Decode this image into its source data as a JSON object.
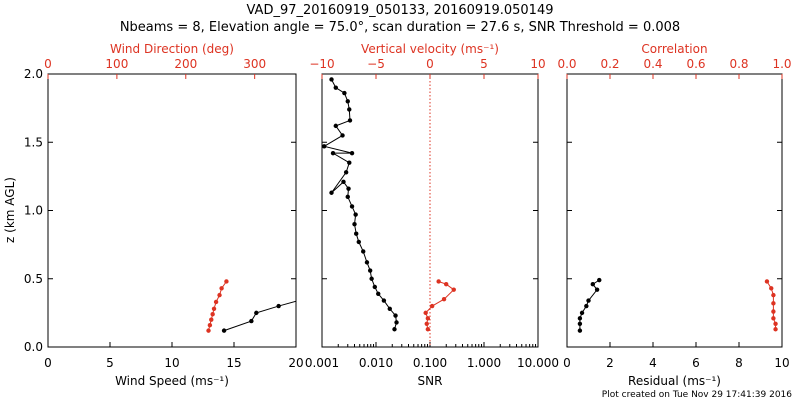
{
  "figure": {
    "title_line1": "VAD_97_20160919_050133, 20160919.050149",
    "title_line2": "Nbeams = 8, Elevation angle = 75.0°, scan duration = 27.6 s, SNR Threshold = 0.008",
    "footer": "Plot created on Tue Nov 29 17:41:39 2016",
    "y_axis_label": "z (km AGL)",
    "y_ticks": [
      "0.0",
      "0.5",
      "1.0",
      "1.5",
      "2.0"
    ],
    "colors": {
      "axis": "#000000",
      "secondary": "#dd3322"
    }
  },
  "chart_data": [
    {
      "type": "line",
      "title": "",
      "xlabel": "Wind Speed (ms⁻¹)",
      "xlim": [
        0,
        20
      ],
      "x_ticks": [
        "0",
        "5",
        "10",
        "15",
        "20"
      ],
      "top_xlabel": "Wind Direction (deg)",
      "top_xlim": [
        0,
        360
      ],
      "top_x_ticks": [
        "0",
        "100",
        "200",
        "300"
      ],
      "ylabel": "z (km AGL)",
      "ylim": [
        0,
        2
      ],
      "grid": false,
      "series": [
        {
          "axis": "bottom",
          "points": [
            [
              14.2,
              0.12
            ],
            [
              16.4,
              0.19
            ],
            [
              16.8,
              0.25
            ],
            [
              18.6,
              0.3
            ],
            [
              20.2,
              0.34
            ]
          ]
        },
        {
          "axis": "top",
          "points": [
            [
              233,
              0.12
            ],
            [
              235,
              0.16
            ],
            [
              237,
              0.2
            ],
            [
              239,
              0.24
            ],
            [
              241,
              0.28
            ],
            [
              244,
              0.33
            ],
            [
              249,
              0.38
            ],
            [
              252,
              0.43
            ],
            [
              259,
              0.48
            ]
          ]
        }
      ]
    },
    {
      "type": "line",
      "title": "",
      "xlabel": "SNR",
      "xscale": "log",
      "xlim": [
        0.001,
        10
      ],
      "x_ticks": [
        "0.001",
        "0.010",
        "0.100",
        "1.000",
        "10.000"
      ],
      "top_xlabel": "Vertical velocity (ms⁻¹)",
      "top_xlim": [
        -10,
        10
      ],
      "top_x_ticks": [
        "−10",
        "−5",
        "0",
        "5",
        "10"
      ],
      "ylim": [
        0,
        2
      ],
      "reference_line": {
        "axis": "top",
        "x": 0
      },
      "series": [
        {
          "axis": "bottom",
          "points": [
            [
              0.022,
              0.13
            ],
            [
              0.024,
              0.18
            ],
            [
              0.023,
              0.23
            ],
            [
              0.018,
              0.28
            ],
            [
              0.014,
              0.34
            ],
            [
              0.011,
              0.39
            ],
            [
              0.0095,
              0.44
            ],
            [
              0.0083,
              0.5
            ],
            [
              0.0078,
              0.56
            ],
            [
              0.0068,
              0.62
            ],
            [
              0.0058,
              0.7
            ],
            [
              0.0048,
              0.77
            ],
            [
              0.0043,
              0.83
            ],
            [
              0.004,
              0.9
            ],
            [
              0.0042,
              0.97
            ],
            [
              0.0036,
              1.03
            ],
            [
              0.003,
              1.1
            ],
            [
              0.0031,
              1.16
            ],
            [
              0.0025,
              1.21
            ],
            [
              0.0015,
              1.13
            ],
            [
              0.0028,
              1.28
            ],
            [
              0.0032,
              1.35
            ],
            [
              0.0016,
              1.42
            ],
            [
              0.0036,
              1.42
            ],
            [
              0.0011,
              1.47
            ],
            [
              0.0024,
              1.55
            ],
            [
              0.0018,
              1.62
            ],
            [
              0.0033,
              1.66
            ],
            [
              0.0032,
              1.74
            ],
            [
              0.003,
              1.8
            ],
            [
              0.0026,
              1.86
            ],
            [
              0.0018,
              1.9
            ],
            [
              0.0015,
              1.96
            ]
          ]
        },
        {
          "axis": "top",
          "points": [
            [
              -0.2,
              0.13
            ],
            [
              -0.3,
              0.17
            ],
            [
              -0.2,
              0.21
            ],
            [
              -0.4,
              0.25
            ],
            [
              0.2,
              0.3
            ],
            [
              1.3,
              0.35
            ],
            [
              2.2,
              0.42
            ],
            [
              1.5,
              0.46
            ],
            [
              0.8,
              0.48
            ]
          ]
        }
      ]
    },
    {
      "type": "line",
      "title": "",
      "xlabel": "Residual (ms⁻¹)",
      "xlim": [
        0,
        10
      ],
      "x_ticks": [
        "0",
        "2",
        "4",
        "6",
        "8",
        "10"
      ],
      "top_xlabel": "Correlation",
      "top_xlim": [
        0,
        1
      ],
      "top_x_ticks": [
        "0.0",
        "0.2",
        "0.4",
        "0.6",
        "0.8",
        "1.0"
      ],
      "ylim": [
        0,
        2
      ],
      "series": [
        {
          "axis": "bottom",
          "points": [
            [
              0.6,
              0.12
            ],
            [
              0.6,
              0.17
            ],
            [
              0.6,
              0.21
            ],
            [
              0.7,
              0.25
            ],
            [
              0.9,
              0.3
            ],
            [
              1.0,
              0.34
            ],
            [
              1.4,
              0.42
            ],
            [
              1.2,
              0.46
            ],
            [
              1.5,
              0.49
            ]
          ]
        },
        {
          "axis": "top",
          "points": [
            [
              0.97,
              0.13
            ],
            [
              0.97,
              0.17
            ],
            [
              0.96,
              0.21
            ],
            [
              0.96,
              0.26
            ],
            [
              0.96,
              0.32
            ],
            [
              0.96,
              0.38
            ],
            [
              0.95,
              0.43
            ],
            [
              0.93,
              0.48
            ]
          ]
        }
      ]
    }
  ]
}
